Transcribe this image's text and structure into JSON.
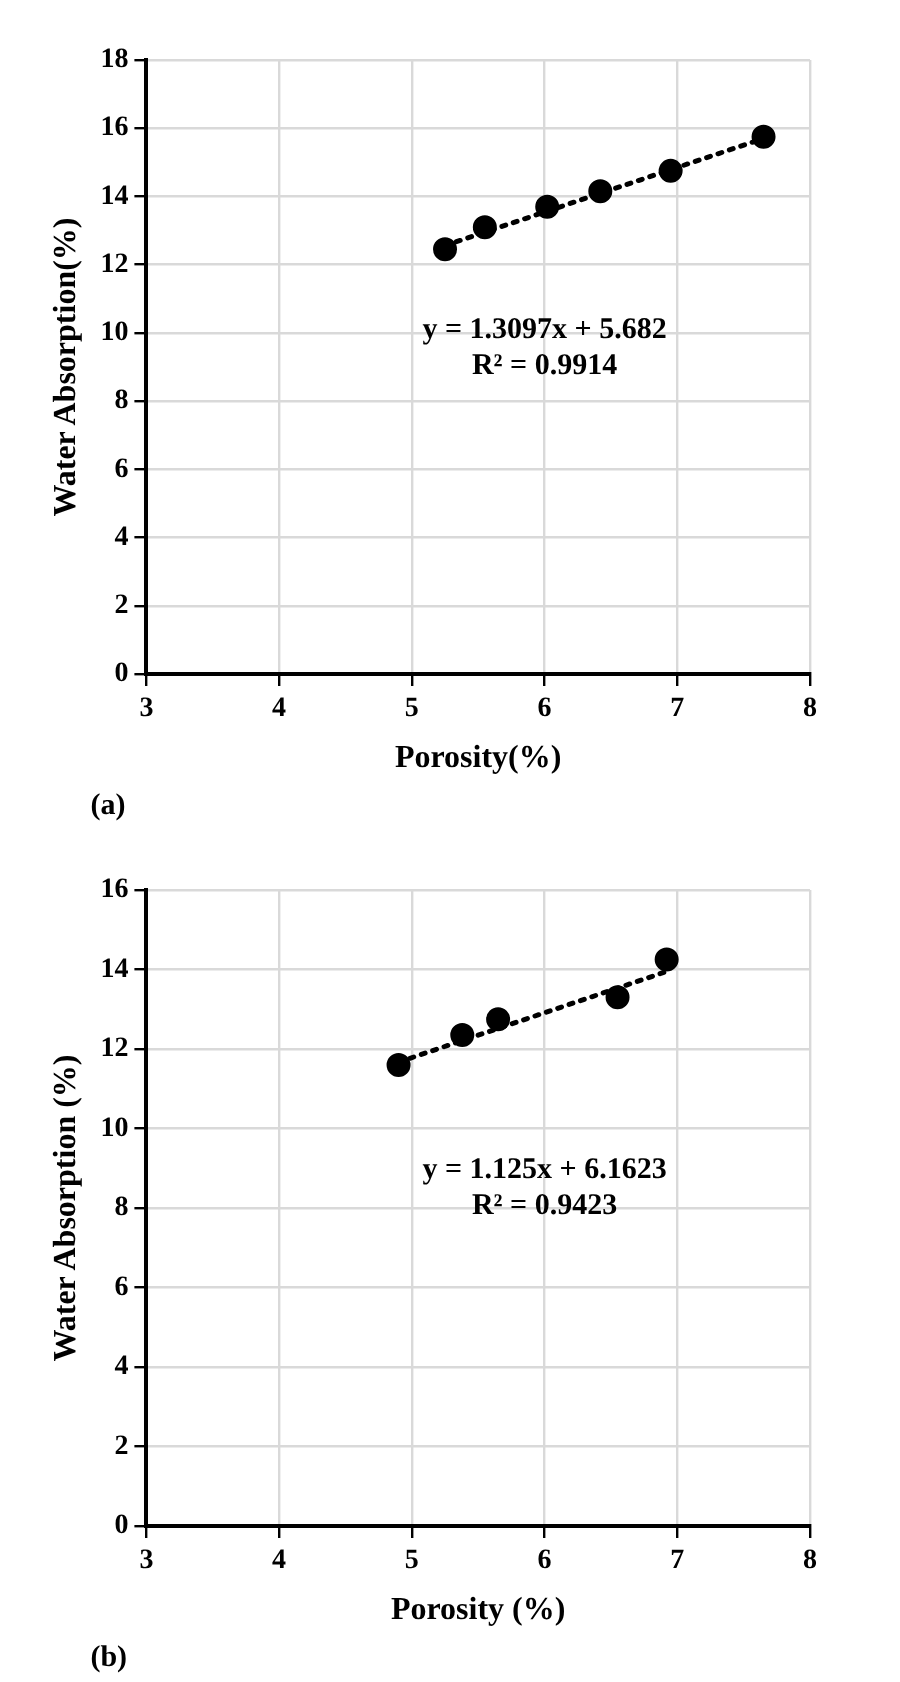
{
  "chart_data": [
    {
      "type": "scatter",
      "xlabel": "Porosity(%)",
      "ylabel": "Water Absorption(%)",
      "xlim": [
        3,
        8
      ],
      "xticks": [
        3,
        4,
        5,
        6,
        7,
        8
      ],
      "ylim": [
        0,
        18
      ],
      "yticks": [
        0,
        2,
        4,
        6,
        8,
        10,
        12,
        14,
        16,
        18
      ],
      "grid": true,
      "legend": false,
      "annotations": [
        "y = 1.3097x + 5.682",
        "R² = 0.9914",
        "(a)"
      ],
      "series": [
        {
          "type": "scatter",
          "color": "#000000",
          "marker": "circle",
          "x": [
            5.25,
            5.55,
            6.02,
            6.42,
            6.95,
            7.65
          ],
          "values": [
            12.45,
            13.1,
            13.7,
            14.15,
            14.75,
            15.75
          ]
        },
        {
          "type": "line",
          "color": "#000000",
          "marker": "none",
          "line_style": "dotted",
          "x": [
            5.25,
            7.65
          ],
          "values": [
            12.56,
            15.7
          ]
        }
      ]
    },
    {
      "type": "scatter",
      "xlabel": "Porosity (%)",
      "ylabel": "Water Absorption (%)",
      "xlim": [
        3,
        8
      ],
      "xticks": [
        3,
        4,
        5,
        6,
        7,
        8
      ],
      "ylim": [
        0,
        16
      ],
      "yticks": [
        0,
        2,
        4,
        6,
        8,
        10,
        12,
        14,
        16
      ],
      "grid": true,
      "legend": false,
      "annotations": [
        "y = 1.125x + 6.1623",
        "R² = 0.9423",
        "(b)"
      ],
      "series": [
        {
          "type": "scatter",
          "color": "#000000",
          "marker": "circle",
          "x": [
            4.9,
            5.38,
            5.65,
            6.55,
            6.92
          ],
          "values": [
            11.6,
            12.35,
            12.75,
            13.3,
            14.25
          ]
        },
        {
          "type": "line",
          "color": "#000000",
          "marker": "none",
          "line_style": "dotted",
          "x": [
            4.9,
            6.92
          ],
          "values": [
            11.67,
            13.95
          ]
        }
      ]
    }
  ]
}
